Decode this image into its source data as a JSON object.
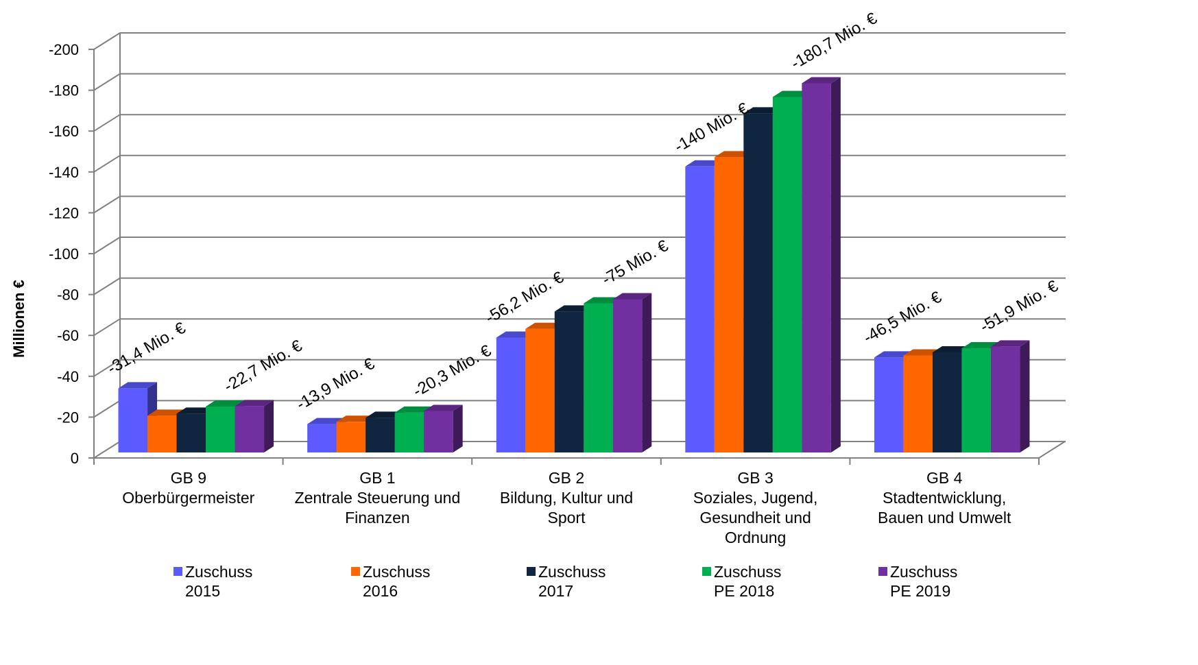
{
  "chart_data": {
    "type": "bar",
    "y_axis_label": "Millionen €",
    "y_ticks": [
      "-200",
      "-180",
      "-160",
      "-140",
      "-120",
      "-100",
      "-80",
      "-60",
      "-40",
      "-20",
      "0"
    ],
    "ylim": [
      0,
      200
    ],
    "grid": true,
    "legend_position": "bottom",
    "categories": [
      [
        "GB 9",
        "Oberbürgermeister"
      ],
      [
        "GB 1",
        "Zentrale Steuerung und",
        "Finanzen"
      ],
      [
        "GB 2",
        "Bildung, Kultur und",
        "Sport"
      ],
      [
        "GB 3",
        "Soziales, Jugend,",
        "Gesundheit und",
        "Ordnung"
      ],
      [
        "GB 4",
        "Stadtentwicklung,",
        "Bauen und Umwelt"
      ]
    ],
    "series": [
      {
        "name": [
          "Zuschuss",
          "2015"
        ],
        "color": "#5b5bff",
        "values": [
          31.4,
          13.9,
          56.2,
          140,
          46.5
        ]
      },
      {
        "name": [
          "Zuschuss",
          "2016"
        ],
        "color": "#ff6600",
        "values": [
          18,
          15,
          60.5,
          144.5,
          47.5
        ]
      },
      {
        "name": [
          "Zuschuss",
          "2017"
        ],
        "color": "#10253f",
        "values": [
          19,
          17,
          69,
          166,
          49
        ]
      },
      {
        "name": [
          "Zuschuss",
          "PE 2018"
        ],
        "color": "#00b050",
        "values": [
          22.5,
          19.5,
          73,
          174,
          51
        ]
      },
      {
        "name": [
          "Zuschuss",
          "PE 2019"
        ],
        "color": "#7030a0",
        "values": [
          22.7,
          20.3,
          75,
          180.7,
          51.9
        ]
      }
    ],
    "annotations": [
      {
        "category": 0,
        "series": 0,
        "text": "-31,4 Mio. €"
      },
      {
        "category": 0,
        "series": 4,
        "text": "-22,7 Mio. €"
      },
      {
        "category": 1,
        "series": 0,
        "text": "-13,9 Mio. €"
      },
      {
        "category": 1,
        "series": 4,
        "text": "-20,3 Mio. €"
      },
      {
        "category": 2,
        "series": 0,
        "text": "-56,2 Mio. €"
      },
      {
        "category": 2,
        "series": 4,
        "text": "-75 Mio. €"
      },
      {
        "category": 3,
        "series": 0,
        "text": "-140 Mio. €"
      },
      {
        "category": 3,
        "series": 4,
        "text": "-180,7 Mio. €"
      },
      {
        "category": 4,
        "series": 0,
        "text": "-46,5 Mio. €"
      },
      {
        "category": 4,
        "series": 4,
        "text": "-51,9 Mio. €"
      }
    ]
  }
}
